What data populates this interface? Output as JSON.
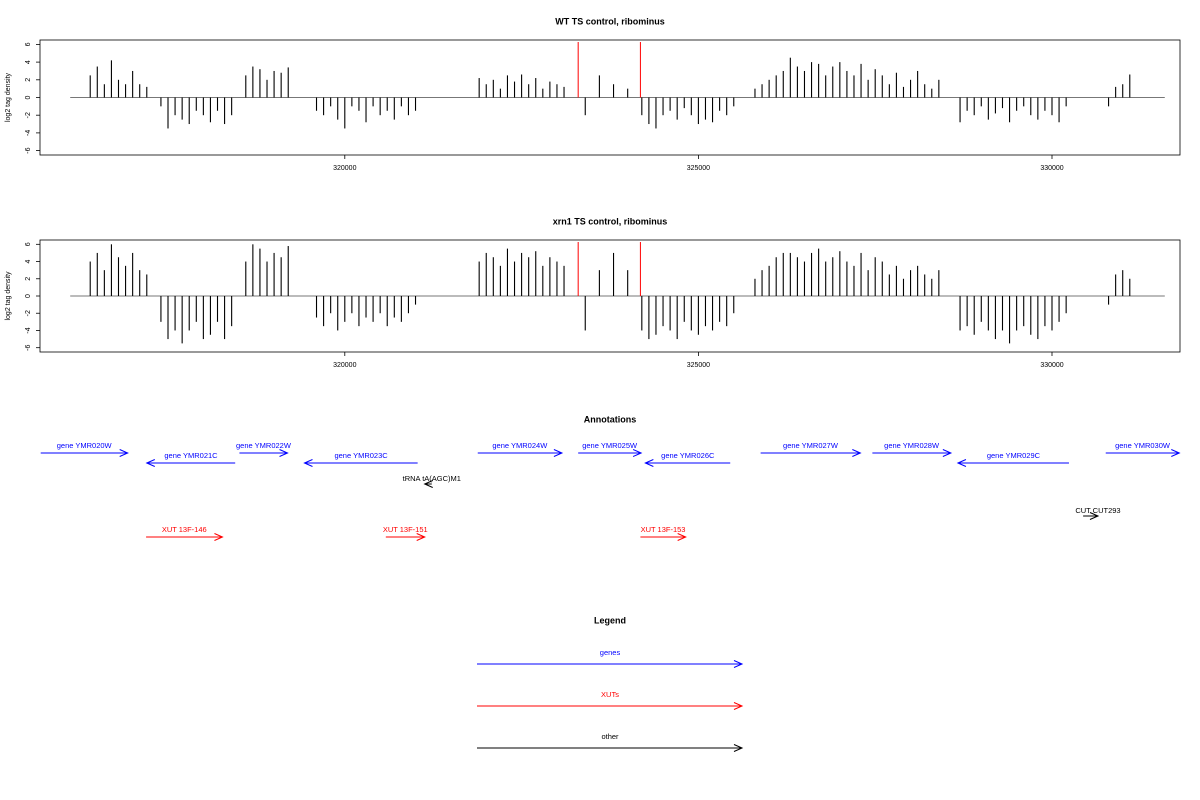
{
  "chart_data": [
    {
      "type": "bar",
      "title": "WT TS control, ribominus",
      "y_label": "log2 tag density",
      "xlim": [
        315690,
        331810
      ],
      "xticks": [
        320000,
        325000,
        330000
      ],
      "ylim": [
        -6.5,
        6.5
      ],
      "yticks": [
        -6,
        -4,
        -2,
        0,
        2,
        4,
        6
      ],
      "color": "#000000",
      "vlines": [
        323300,
        324180
      ],
      "vline_color": "#ff0000",
      "x": [
        316400,
        316500,
        316600,
        316700,
        316800,
        316900,
        317000,
        317100,
        317200,
        317400,
        317500,
        317600,
        317700,
        317800,
        317900,
        318000,
        318100,
        318200,
        318300,
        318400,
        318600,
        318700,
        318800,
        318900,
        319000,
        319100,
        319200,
        319600,
        319700,
        319800,
        319900,
        320000,
        320100,
        320200,
        320300,
        320400,
        320500,
        320600,
        320700,
        320800,
        320900,
        321000,
        321900,
        322000,
        322100,
        322200,
        322300,
        322400,
        322500,
        322600,
        322700,
        322800,
        322900,
        323000,
        323100,
        323400,
        323600,
        323800,
        324000,
        324200,
        324300,
        324400,
        324500,
        324600,
        324700,
        324800,
        324900,
        325000,
        325100,
        325200,
        325300,
        325400,
        325500,
        325800,
        325900,
        326000,
        326100,
        326200,
        326300,
        326400,
        326500,
        326600,
        326700,
        326800,
        326900,
        327000,
        327100,
        327200,
        327300,
        327400,
        327500,
        327600,
        327700,
        327800,
        327900,
        328000,
        328100,
        328200,
        328300,
        328400,
        328700,
        328800,
        328900,
        329000,
        329100,
        329200,
        329300,
        329400,
        329500,
        329600,
        329700,
        329800,
        329900,
        330000,
        330100,
        330200,
        330800,
        330900,
        331000,
        331100
      ],
      "values": [
        2.5,
        3.5,
        1.5,
        4.2,
        2.0,
        1.5,
        3.0,
        1.5,
        1.2,
        -1,
        -3.5,
        -2,
        -2.5,
        -3,
        -1.5,
        -2,
        -2.8,
        -1.5,
        -3,
        -2,
        2.5,
        3.5,
        3.2,
        2,
        3,
        2.8,
        3.4,
        -1.5,
        -2,
        -1,
        -2.5,
        -3.5,
        -1,
        -1.5,
        -2.8,
        -1,
        -2,
        -1.5,
        -2.5,
        -1,
        -2,
        -1.5,
        2.2,
        1.5,
        2,
        1,
        2.5,
        1.8,
        2.6,
        1.5,
        2.2,
        1,
        1.8,
        1.5,
        1.2,
        -2,
        2.5,
        1.5,
        1,
        -2,
        -3,
        -3.5,
        -2,
        -1.5,
        -2.5,
        -1.2,
        -2,
        -3,
        -2.5,
        -2.8,
        -1.5,
        -2,
        -1,
        1,
        1.5,
        2,
        2.5,
        3,
        4.5,
        3.5,
        3,
        4,
        3.8,
        2.5,
        3.5,
        4,
        3,
        2.5,
        3.8,
        2,
        3.2,
        2.5,
        1.5,
        2.8,
        1.2,
        2,
        3,
        1.5,
        1,
        2,
        -2.8,
        -1.5,
        -2,
        -1,
        -2.5,
        -1.8,
        -1.2,
        -2.8,
        -1.5,
        -1,
        -2,
        -2.5,
        -1.5,
        -2,
        -2.8,
        -1,
        -1,
        1.2,
        1.5,
        2.6
      ]
    },
    {
      "type": "bar",
      "title": "xrn1 TS control, ribominus",
      "y_label": "log2 tag density",
      "xlim": [
        315690,
        331810
      ],
      "xticks": [
        320000,
        325000,
        330000
      ],
      "ylim": [
        -6.5,
        6.5
      ],
      "yticks": [
        -6,
        -4,
        -2,
        0,
        2,
        4,
        6
      ],
      "color": "#000000",
      "vlines": [
        323300,
        324180
      ],
      "vline_color": "#ff0000",
      "x": [
        316400,
        316500,
        316600,
        316700,
        316800,
        316900,
        317000,
        317100,
        317200,
        317400,
        317500,
        317600,
        317700,
        317800,
        317900,
        318000,
        318100,
        318200,
        318300,
        318400,
        318600,
        318700,
        318800,
        318900,
        319000,
        319100,
        319200,
        319600,
        319700,
        319800,
        319900,
        320000,
        320100,
        320200,
        320300,
        320400,
        320500,
        320600,
        320700,
        320800,
        320900,
        321000,
        321900,
        322000,
        322100,
        322200,
        322300,
        322400,
        322500,
        322600,
        322700,
        322800,
        322900,
        323000,
        323100,
        323400,
        323600,
        323800,
        324000,
        324200,
        324300,
        324400,
        324500,
        324600,
        324700,
        324800,
        324900,
        325000,
        325100,
        325200,
        325300,
        325400,
        325500,
        325800,
        325900,
        326000,
        326100,
        326200,
        326300,
        326400,
        326500,
        326600,
        326700,
        326800,
        326900,
        327000,
        327100,
        327200,
        327300,
        327400,
        327500,
        327600,
        327700,
        327800,
        327900,
        328000,
        328100,
        328200,
        328300,
        328400,
        328700,
        328800,
        328900,
        329000,
        329100,
        329200,
        329300,
        329400,
        329500,
        329600,
        329700,
        329800,
        329900,
        330000,
        330100,
        330200,
        330800,
        330900,
        331000,
        331100
      ],
      "values": [
        4,
        5,
        3,
        6,
        4.5,
        3.5,
        5,
        3,
        2.5,
        -3,
        -5,
        -4,
        -5.5,
        -4,
        -3,
        -5,
        -4.5,
        -3,
        -5,
        -3.5,
        4,
        6,
        5.5,
        4,
        5,
        4.5,
        5.8,
        -2.5,
        -3.5,
        -2,
        -4,
        -3,
        -2,
        -3.5,
        -2.5,
        -3,
        -2,
        -3.5,
        -2.5,
        -3,
        -2,
        -1,
        4,
        5,
        4.5,
        3.5,
        5.5,
        4,
        5,
        4.5,
        5.2,
        3.5,
        4.5,
        4,
        3.5,
        -4,
        3,
        5,
        3,
        -4,
        -5,
        -4.5,
        -3.5,
        -4,
        -5,
        -3,
        -4,
        -4.5,
        -3.5,
        -4,
        -3,
        -3.5,
        -2,
        2,
        3,
        3.5,
        4.5,
        5,
        5,
        4.5,
        4,
        5,
        5.5,
        4,
        4.5,
        5.2,
        4,
        3.5,
        5,
        3,
        4.5,
        4,
        2.5,
        3.5,
        2,
        3,
        3.5,
        2.5,
        2,
        3,
        -4,
        -3.5,
        -4.5,
        -3,
        -4,
        -5,
        -4,
        -5.5,
        -4,
        -3.5,
        -4.5,
        -5,
        -3.5,
        -4,
        -3,
        -2,
        -1,
        2.5,
        3,
        2
      ]
    }
  ],
  "annotations": {
    "title": "Annotations",
    "features": [
      {
        "label": "gene YMR020W",
        "start": 315700,
        "end": 316930,
        "strand": "+",
        "color": "#0000ff"
      },
      {
        "label": "gene YMR021C",
        "start": 317200,
        "end": 318450,
        "strand": "-",
        "color": "#0000ff"
      },
      {
        "label": "gene YMR022W",
        "start": 318510,
        "end": 319190,
        "strand": "+",
        "color": "#0000ff"
      },
      {
        "label": "gene YMR023C",
        "start": 319430,
        "end": 321030,
        "strand": "-",
        "color": "#0000ff"
      },
      {
        "label": "gene YMR024W",
        "start": 321880,
        "end": 323070,
        "strand": "+",
        "color": "#0000ff"
      },
      {
        "label": "gene YMR025W",
        "start": 323300,
        "end": 324190,
        "strand": "+",
        "color": "#0000ff"
      },
      {
        "label": "gene YMR026C",
        "start": 324250,
        "end": 325450,
        "strand": "-",
        "color": "#0000ff"
      },
      {
        "label": "gene YMR027W",
        "start": 325880,
        "end": 327290,
        "strand": "+",
        "color": "#0000ff"
      },
      {
        "label": "gene YMR028W",
        "start": 327460,
        "end": 328570,
        "strand": "+",
        "color": "#0000ff"
      },
      {
        "label": "gene YMR029C",
        "start": 328670,
        "end": 330240,
        "strand": "-",
        "color": "#0000ff"
      },
      {
        "label": "gene YMR030W",
        "start": 330760,
        "end": 331800,
        "strand": "+",
        "color": "#0000ff"
      },
      {
        "label": "tRNA tA(AGC)M1",
        "start": 321130,
        "end": 321230,
        "strand": "-",
        "color": "#000000"
      },
      {
        "label": "CUT CUT293",
        "start": 330440,
        "end": 330650,
        "strand": "+",
        "color": "#000000"
      },
      {
        "label": "XUT 13F-146",
        "start": 317190,
        "end": 318270,
        "strand": "+",
        "color": "#ff0000"
      },
      {
        "label": "XUT 13F-151",
        "start": 320580,
        "end": 321130,
        "strand": "+",
        "color": "#ff0000"
      },
      {
        "label": "XUT 13F-153",
        "start": 324180,
        "end": 324820,
        "strand": "+",
        "color": "#ff0000"
      }
    ]
  },
  "legend": {
    "title": "Legend",
    "items": [
      {
        "label": "genes",
        "color": "#0000ff"
      },
      {
        "label": "XUTs",
        "color": "#ff0000"
      },
      {
        "label": "other",
        "color": "#000000"
      }
    ]
  }
}
